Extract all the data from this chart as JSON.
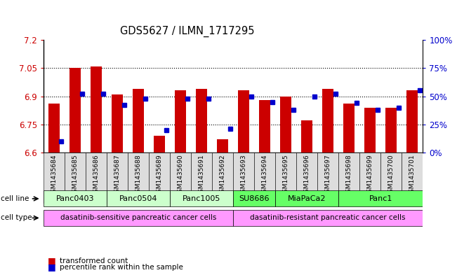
{
  "title": "GDS5627 / ILMN_1717295",
  "samples": [
    "GSM1435684",
    "GSM1435685",
    "GSM1435686",
    "GSM1435687",
    "GSM1435688",
    "GSM1435689",
    "GSM1435690",
    "GSM1435691",
    "GSM1435692",
    "GSM1435693",
    "GSM1435694",
    "GSM1435695",
    "GSM1435696",
    "GSM1435697",
    "GSM1435698",
    "GSM1435699",
    "GSM1435700",
    "GSM1435701"
  ],
  "transformed_count": [
    6.86,
    7.05,
    7.06,
    6.91,
    6.94,
    6.69,
    6.93,
    6.94,
    6.67,
    6.93,
    6.88,
    6.9,
    6.77,
    6.94,
    6.86,
    6.84,
    6.84,
    6.93
  ],
  "percentile": [
    10,
    52,
    52,
    42,
    48,
    20,
    48,
    48,
    21,
    50,
    45,
    38,
    50,
    52,
    44,
    38,
    40,
    55
  ],
  "ylim_left": [
    6.6,
    7.2
  ],
  "ylim_right": [
    0,
    100
  ],
  "yticks_left": [
    6.6,
    6.75,
    6.9,
    7.05,
    7.2
  ],
  "yticks_right": [
    0,
    25,
    50,
    75,
    100
  ],
  "ytick_labels_right": [
    "0%",
    "25%",
    "50%",
    "75%",
    "100%"
  ],
  "bar_color": "#CC0000",
  "dot_color": "#0000CC",
  "baseline": 6.6,
  "cell_lines": [
    {
      "label": "Panc0403",
      "start": 0,
      "end": 3
    },
    {
      "label": "Panc0504",
      "start": 3,
      "end": 6
    },
    {
      "label": "Panc1005",
      "start": 6,
      "end": 9
    },
    {
      "label": "SU8686",
      "start": 9,
      "end": 11
    },
    {
      "label": "MiaPaCa2",
      "start": 11,
      "end": 14
    },
    {
      "label": "Panc1",
      "start": 14,
      "end": 18
    }
  ],
  "cell_line_color_sensitive": "#CCFFCC",
  "cell_line_color_resistant": "#66FF66",
  "cell_type_sensitive_color": "#FF99FF",
  "cell_type_resistant_color": "#FF99FF",
  "cell_type_label_sensitive": "dasatinib-sensitive pancreatic cancer cells",
  "cell_type_label_resistant": "dasatinib-resistant pancreatic cancer cells",
  "grid_yticks": [
    6.75,
    6.9,
    7.05
  ],
  "legend_red_label": "transformed count",
  "legend_blue_label": "percentile rank within the sample"
}
